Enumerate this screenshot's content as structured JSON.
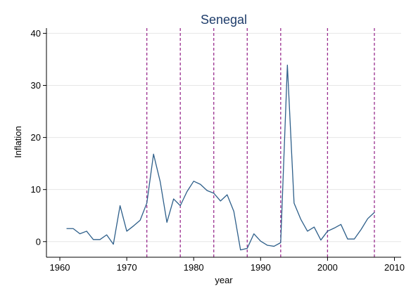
{
  "chart_data": {
    "type": "line",
    "title": "Senegal",
    "xlabel": "year",
    "ylabel": "Inflation",
    "xlim": [
      1958,
      2011
    ],
    "ylim": [
      -3,
      41
    ],
    "xticks": [
      1960,
      1970,
      1980,
      1990,
      2000,
      2010
    ],
    "yticks": [
      0,
      10,
      20,
      30,
      40
    ],
    "grid": "horizontal",
    "legend": "none",
    "colors": {
      "title": "#1f3d6b",
      "line": "#2e5f8a",
      "vlines": "#9a2f8f",
      "grid": "#e6e6e6",
      "axis": "#000000"
    },
    "reference_lines_x": [
      1973,
      1978,
      1983,
      1988,
      1993,
      2000,
      2007
    ],
    "series": [
      {
        "x": [
          1961,
          1962,
          1963,
          1964,
          1965,
          1966,
          1967,
          1968,
          1969,
          1970,
          1971,
          1972,
          1973,
          1974,
          1975,
          1976,
          1977,
          1978,
          1979,
          1980,
          1981,
          1982,
          1983,
          1984,
          1985,
          1986,
          1987,
          1988,
          1989,
          1990,
          1991,
          1992,
          1993,
          1994,
          1995,
          1996,
          1997,
          1998,
          1999,
          2000,
          2001,
          2002,
          2003,
          2004,
          2005,
          2006,
          2007
        ],
        "values": [
          2.5,
          2.5,
          1.5,
          2.0,
          0.4,
          0.4,
          1.3,
          -0.5,
          6.9,
          2.0,
          3.0,
          4.1,
          7.4,
          16.8,
          11.5,
          3.7,
          8.2,
          6.9,
          9.6,
          11.6,
          11.0,
          9.8,
          9.3,
          7.8,
          9.0,
          5.8,
          -1.6,
          -1.3,
          1.5,
          0.1,
          -0.7,
          -0.9,
          -0.2,
          33.9,
          7.4,
          4.3,
          2.0,
          2.8,
          0.3,
          2.0,
          2.6,
          3.3,
          0.5,
          0.5,
          2.3,
          4.4,
          5.6
        ]
      }
    ]
  }
}
